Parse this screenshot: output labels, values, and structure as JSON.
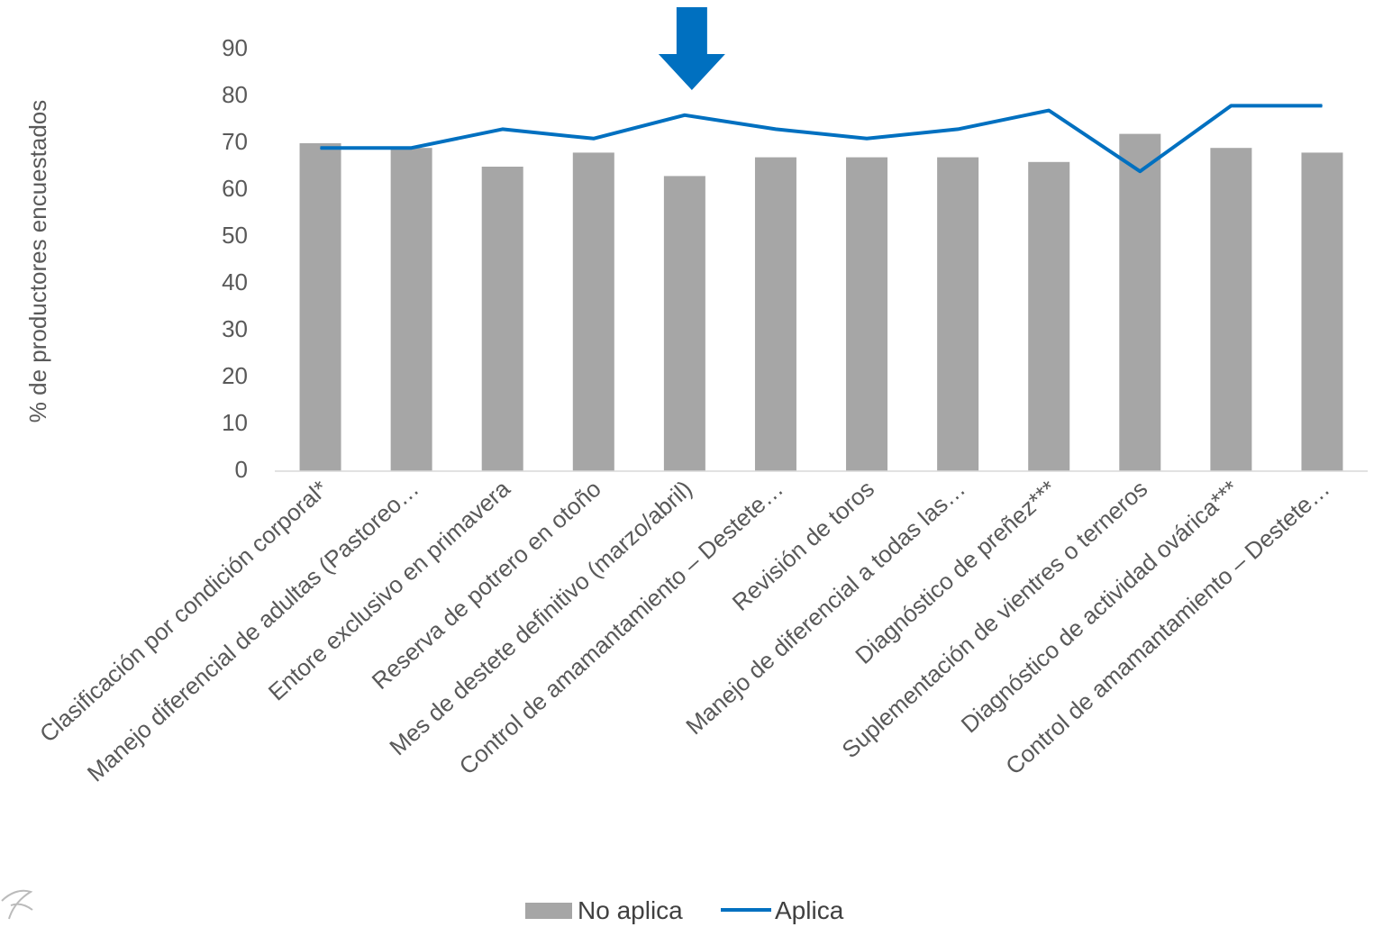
{
  "chart_data": {
    "type": "bar",
    "title": "",
    "xlabel": "",
    "ylabel": "% de productores encuestados",
    "ylim": [
      0,
      90
    ],
    "yticks": [
      0,
      10,
      20,
      30,
      40,
      50,
      60,
      70,
      80,
      90
    ],
    "grid": false,
    "legend_position": "bottom",
    "categories": [
      "Clasificación por condición corporal*",
      "Manejo diferencial de adultas (Pastoreo…",
      "Entore exclusivo en primavera",
      "Reserva de potrero en otoño",
      "Mes de destete definitivo (marzo/abril)",
      "Control de amamantamiento – Destete…",
      "Revisión de toros",
      "Manejo de diferencial a todas las…",
      "Diagnóstico de preñez***",
      "Suplementación de vientres o terneros",
      "Diagnóstico de actividad ovárica***",
      "Control de amamantamiento – Destete…"
    ],
    "series": [
      {
        "name": "No aplica",
        "type": "bar",
        "color": "#a6a6a6",
        "values": [
          70,
          69,
          65,
          68,
          63,
          67,
          67,
          67,
          66,
          72,
          69,
          68
        ]
      },
      {
        "name": "Aplica",
        "type": "line",
        "color": "#0070c0",
        "values": [
          69,
          69,
          73,
          71,
          76,
          73,
          71,
          73,
          77,
          64,
          78,
          78
        ]
      }
    ],
    "annotation": {
      "type": "arrow-down",
      "category_index": 4,
      "color": "#0070c0"
    }
  }
}
